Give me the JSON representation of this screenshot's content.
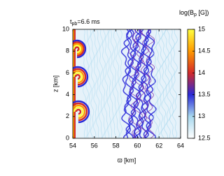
{
  "chart_data": {
    "type": "image",
    "title_parts": [
      "t",
      "pb",
      "=6.6 ms"
    ],
    "x_label": "ϖ [km]",
    "y_label": "z [km]",
    "colorbar_label_parts": [
      "log(B",
      "p",
      " [G])"
    ],
    "xlim": [
      54,
      64
    ],
    "xticks": [
      54,
      56,
      58,
      60,
      62,
      64
    ],
    "ylim": [
      0,
      10
    ],
    "yticks": [
      0,
      2,
      4,
      6,
      8,
      10
    ],
    "clim": [
      12.5,
      15
    ],
    "cticks": [
      12.5,
      13,
      13.5,
      14,
      14.5,
      15
    ],
    "colormap": [
      "#ffffff",
      "#a8d8ee",
      "#2a2ad8",
      "#d42a2a",
      "#ff9a00",
      "#ffff40"
    ]
  }
}
